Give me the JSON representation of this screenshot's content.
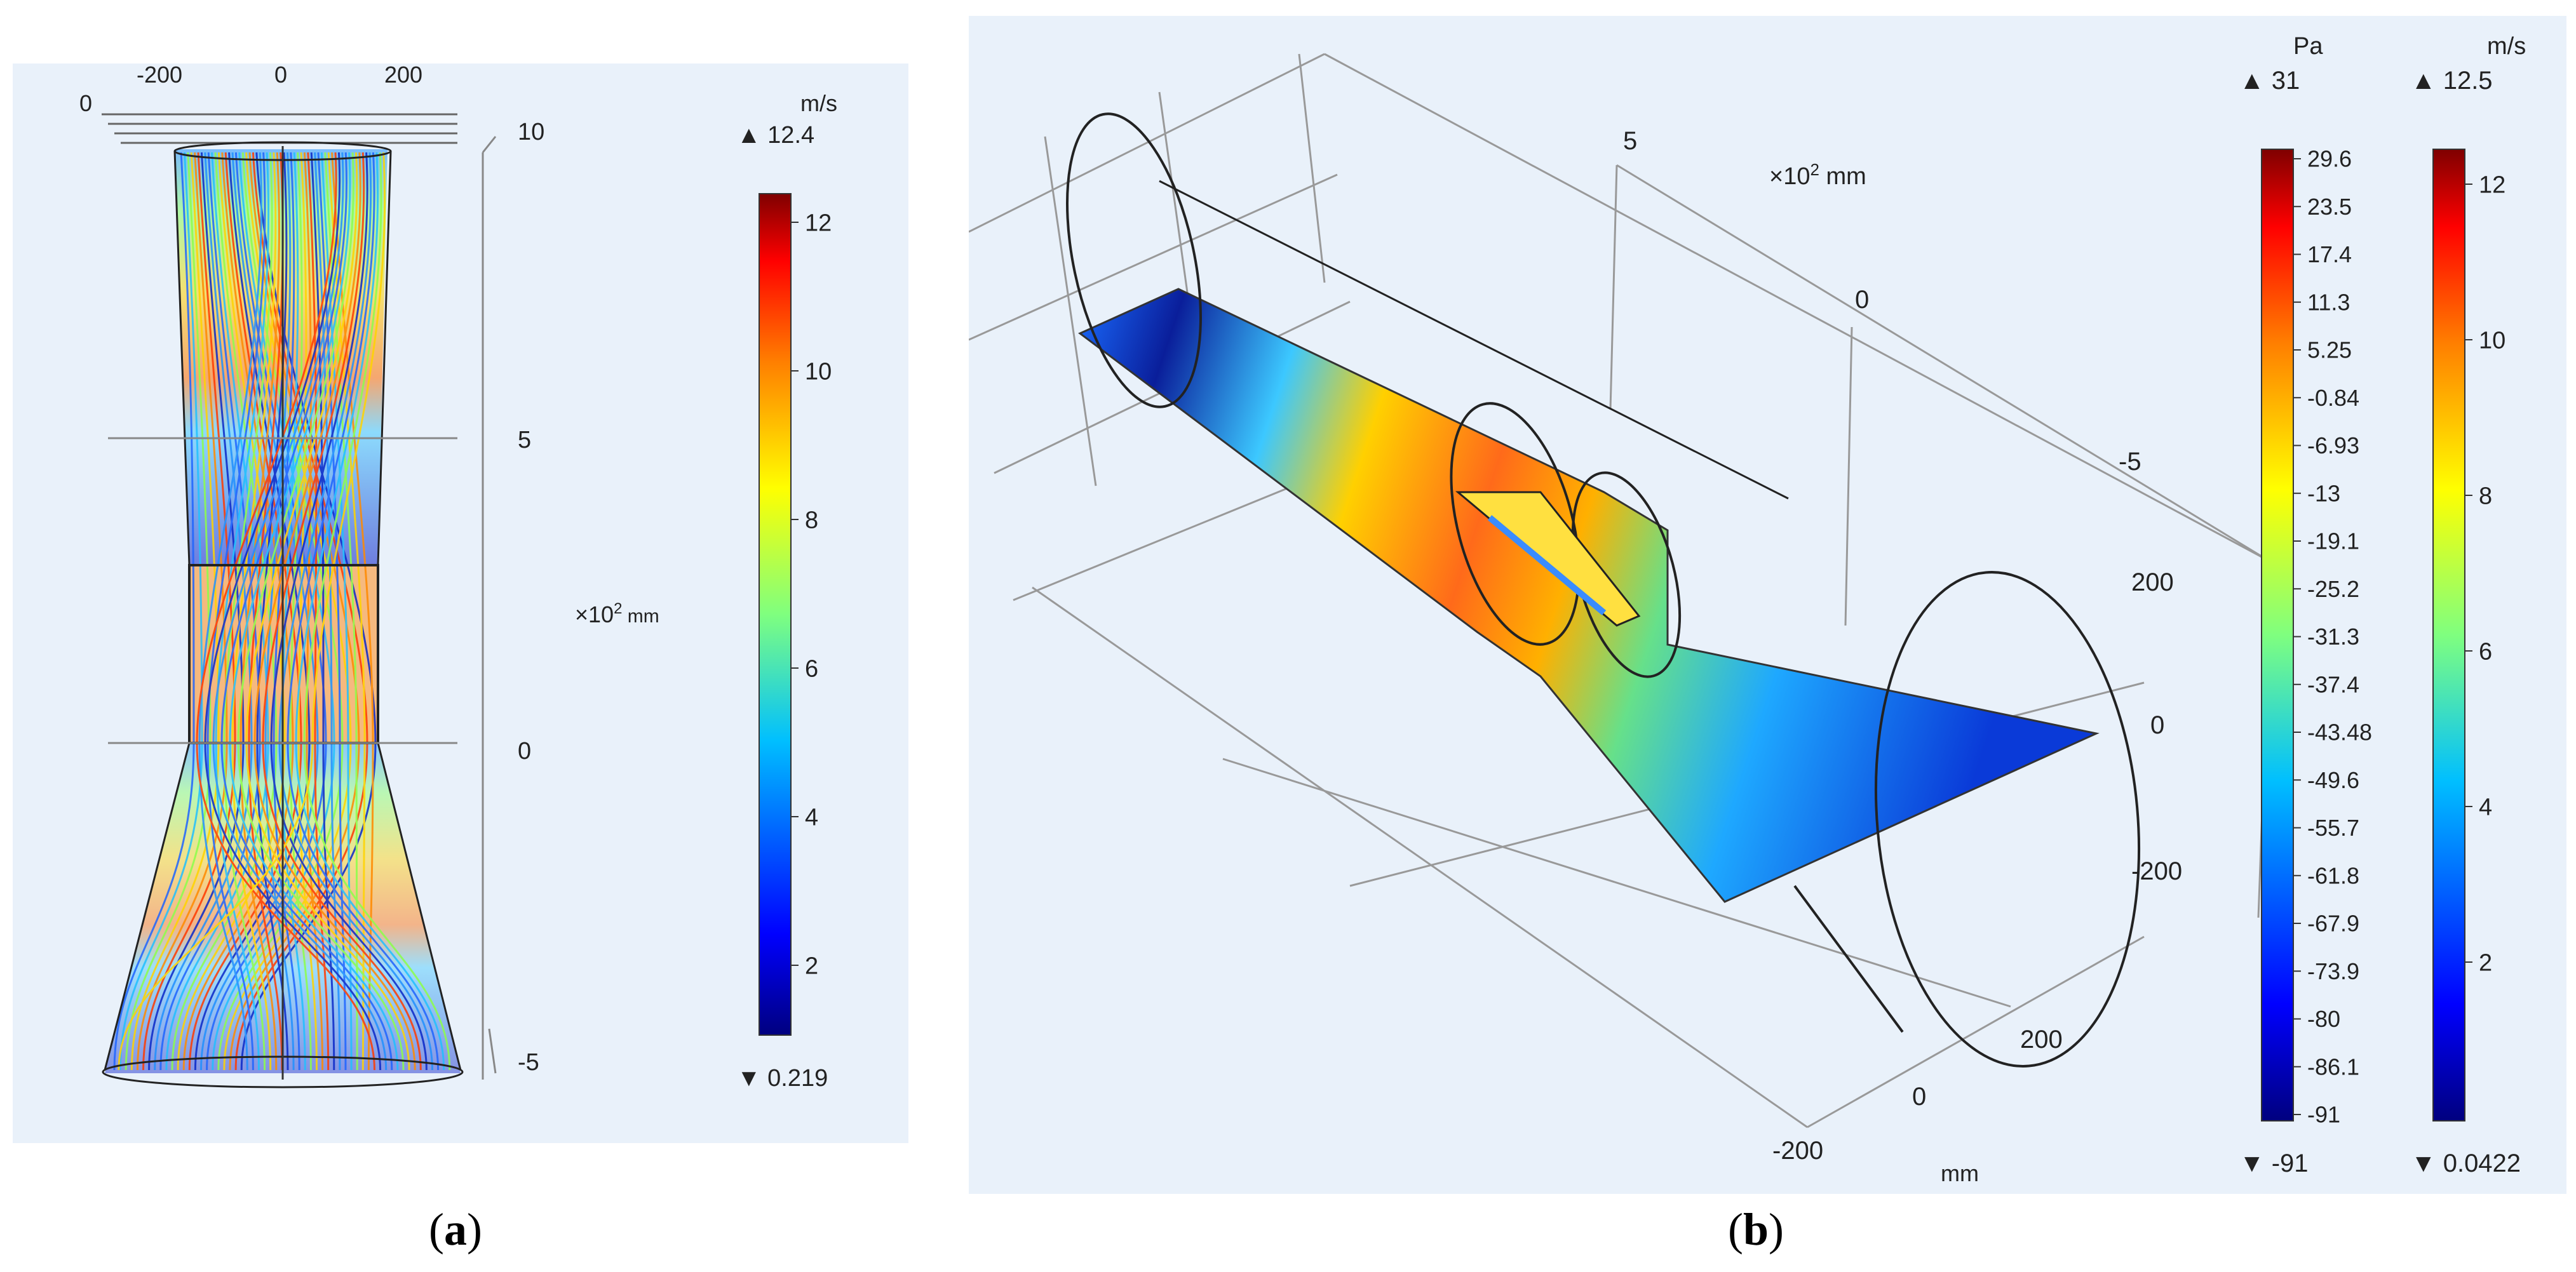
{
  "panel_a": {
    "unit": "m/s",
    "max_label": "12.4",
    "min_label": "0.219",
    "colorbar_ticks": [
      "12",
      "10",
      "8",
      "6",
      "4",
      "2"
    ],
    "top_axis_ticks": [
      "0",
      "-200",
      "0",
      "200"
    ],
    "side_axis_ticks": [
      "10",
      "5",
      "0",
      "-5"
    ],
    "axis_unit_prefix": "×10",
    "axis_unit_exp": "2",
    "axis_unit": " mm"
  },
  "panel_b": {
    "pressure_unit": "Pa",
    "pressure_max_label": "31",
    "pressure_min_label": "-91",
    "pressure_ticks": [
      "29.6",
      "23.5",
      "17.4",
      "11.3",
      "5.25",
      "-0.84",
      "-6.93",
      "-13",
      "-19.1",
      "-25.2",
      "-31.3",
      "-37.4",
      "-43.48",
      "-49.6",
      "-55.7",
      "-61.8",
      "-67.9",
      "-73.9",
      "-80",
      "-86.1",
      "-91"
    ],
    "velocity_unit": "m/s",
    "velocity_max_label": "12.5",
    "velocity_min_label": "0.0422",
    "velocity_ticks": [
      "12",
      "10",
      "8",
      "6",
      "4",
      "2"
    ],
    "axis_unit_prefix": "×10",
    "axis_unit_exp": "2",
    "axis_unit": " mm",
    "z_ticks": [
      "5",
      "0",
      "-5"
    ],
    "y_ticks": [
      "200",
      "0",
      "-200"
    ],
    "x_ticks": [
      "200",
      "0",
      "-200"
    ],
    "x_unit": "mm"
  },
  "captions": {
    "a": "a",
    "b": "b"
  },
  "colors": {
    "plot_bg": "#e9f1fa",
    "jet": [
      "#00007f",
      "#0000ff",
      "#00bfff",
      "#7fff7f",
      "#ffff00",
      "#ff7f00",
      "#ff0000",
      "#7f0000"
    ]
  }
}
